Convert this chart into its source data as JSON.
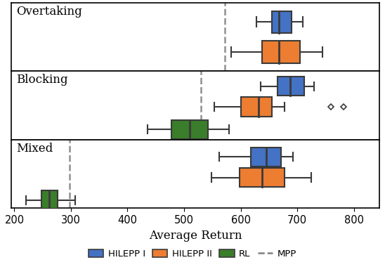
{
  "scenarios": [
    "Overtaking",
    "Blocking",
    "Mixed"
  ],
  "colors": {
    "HILEPP_I": "#4472C4",
    "HILEPP_II": "#ED7D31",
    "RL": "#3A7D2A"
  },
  "mpp_values": {
    "Overtaking": 572,
    "Blocking": 530,
    "Mixed": 298
  },
  "boxplot_data": {
    "Overtaking": {
      "HILEPP_I": {
        "whislo": 628,
        "q1": 655,
        "med": 668,
        "q3": 690,
        "whishi": 710,
        "fliers": []
      },
      "HILEPP_II": {
        "whislo": 583,
        "q1": 638,
        "med": 668,
        "q3": 705,
        "whishi": 745,
        "fliers": []
      }
    },
    "Blocking": {
      "HILEPP_I": {
        "whislo": 635,
        "q1": 665,
        "med": 688,
        "q3": 712,
        "whishi": 730,
        "fliers": []
      },
      "HILEPP_II": {
        "whislo": 553,
        "q1": 600,
        "med": 632,
        "q3": 655,
        "whishi": 678,
        "fliers": [
          760,
          782
        ]
      },
      "RL": {
        "whislo": 435,
        "q1": 478,
        "med": 510,
        "q3": 542,
        "whishi": 580,
        "fliers": []
      }
    },
    "Mixed": {
      "HILEPP_I": {
        "whislo": 562,
        "q1": 618,
        "med": 645,
        "q3": 672,
        "whishi": 692,
        "fliers": []
      },
      "HILEPP_II": {
        "whislo": 548,
        "q1": 598,
        "med": 638,
        "q3": 678,
        "whishi": 725,
        "fliers": []
      },
      "RL": {
        "whislo": 220,
        "q1": 248,
        "med": 262,
        "q3": 276,
        "whishi": 308,
        "fliers": []
      }
    }
  },
  "xlim": [
    195,
    845
  ],
  "xticks": [
    200,
    300,
    400,
    500,
    600,
    700,
    800
  ],
  "xlabel": "Average Return",
  "linewidth": 1.5,
  "mediancolor": "#3a3a3a",
  "edgecolor": "#3a3a3a",
  "legend_labels": [
    "HILEPP I",
    "HILEPP II",
    "RL",
    "MPP"
  ],
  "legend_colors": [
    "#4472C4",
    "#ED7D31",
    "#3A7D2A",
    "#808080"
  ],
  "figsize": [
    5.48,
    3.8
  ],
  "dpi": 100,
  "y_positions": {
    "Overtaking": {
      "HILEPP_I": 0.72,
      "HILEPP_II": 0.28
    },
    "Blocking": {
      "HILEPP_I": 0.78,
      "HILEPP_II": 0.48,
      "RL": 0.15
    },
    "Mixed": {
      "HILEPP_I": 0.75,
      "HILEPP_II": 0.45,
      "RL": 0.12
    }
  },
  "box_heights": {
    "Overtaking": {
      "HILEPP_I": 0.32,
      "HILEPP_II": 0.32
    },
    "Blocking": {
      "HILEPP_I": 0.28,
      "HILEPP_II": 0.28,
      "RL": 0.28
    },
    "Mixed": {
      "HILEPP_I": 0.28,
      "HILEPP_II": 0.28,
      "RL": 0.28
    }
  },
  "method_order": {
    "Overtaking": [
      "HILEPP_I",
      "HILEPP_II"
    ],
    "Blocking": [
      "HILEPP_I",
      "HILEPP_II",
      "RL"
    ],
    "Mixed": [
      "HILEPP_I",
      "HILEPP_II",
      "RL"
    ]
  }
}
